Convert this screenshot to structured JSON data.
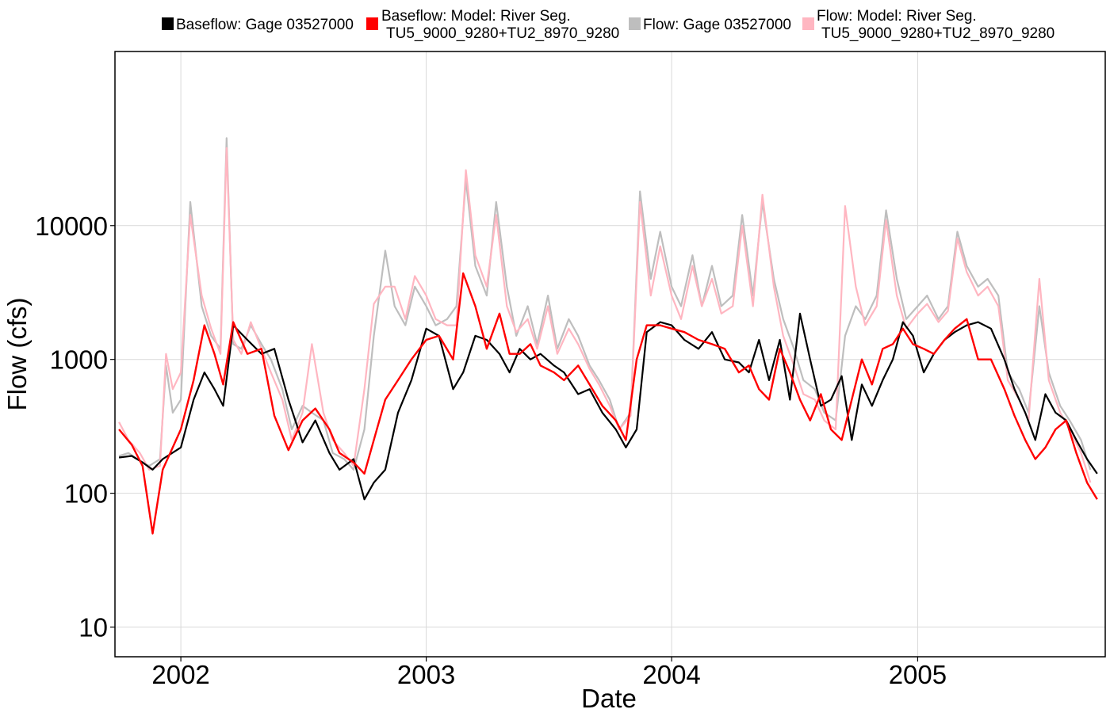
{
  "chart_data": {
    "type": "line",
    "title": "",
    "xlabel": "Date",
    "ylabel": "Flow (cfs)",
    "y_scale": "log10",
    "ylim": [
      6,
      200000
    ],
    "xlim": [
      "2001-09-25",
      "2005-10-07"
    ],
    "grid": true,
    "legend_position": "top",
    "x_ticks": [
      {
        "date": "2002-01-01",
        "label": "2002"
      },
      {
        "date": "2003-01-01",
        "label": "2003"
      },
      {
        "date": "2004-01-01",
        "label": "2004"
      },
      {
        "date": "2005-01-01",
        "label": "2005"
      }
    ],
    "y_ticks": [
      {
        "value": 10,
        "label": "10"
      },
      {
        "value": 100,
        "label": "100"
      },
      {
        "value": 1000,
        "label": "1000"
      },
      {
        "value": 10000,
        "label": "10000"
      }
    ],
    "legend": [
      {
        "color": "#000000",
        "lines": [
          "Baseflow: Gage 03527000"
        ]
      },
      {
        "color": "#ff0000",
        "lines": [
          "Baseflow: Model: River Seg.",
          "TU5_9000_9280+TU2_8970_9280"
        ]
      },
      {
        "color": "#bebebe",
        "lines": [
          "Flow: Gage 03527000"
        ]
      },
      {
        "color": "#ffb6c1",
        "lines": [
          "Flow: Model: River Seg.",
          "TU5_9000_9280+TU2_8970_9280"
        ]
      }
    ],
    "series": [
      {
        "name": "Flow: Gage 03527000",
        "color": "#bebebe",
        "width": 2.2,
        "x": [
          "2001-10-01",
          "2001-10-15",
          "2001-11-01",
          "2001-11-15",
          "2001-12-01",
          "2001-12-10",
          "2001-12-20",
          "2002-01-01",
          "2002-01-15",
          "2002-02-01",
          "2002-02-15",
          "2002-03-01",
          "2002-03-10",
          "2002-03-20",
          "2002-04-01",
          "2002-04-15",
          "2002-05-01",
          "2002-05-15",
          "2002-06-01",
          "2002-06-15",
          "2002-07-01",
          "2002-07-15",
          "2002-08-01",
          "2002-08-15",
          "2002-09-01",
          "2002-09-15",
          "2002-10-01",
          "2002-10-15",
          "2002-11-01",
          "2002-11-15",
          "2002-12-01",
          "2002-12-15",
          "2003-01-01",
          "2003-01-15",
          "2003-02-01",
          "2003-02-15",
          "2003-03-01",
          "2003-03-15",
          "2003-04-01",
          "2003-04-15",
          "2003-05-01",
          "2003-05-15",
          "2003-06-01",
          "2003-06-15",
          "2003-07-01",
          "2003-07-15",
          "2003-08-01",
          "2003-08-15",
          "2003-09-01",
          "2003-09-15",
          "2003-10-01",
          "2003-10-15",
          "2003-11-01",
          "2003-11-15",
          "2003-12-01",
          "2003-12-15",
          "2004-01-01",
          "2004-01-15",
          "2004-02-01",
          "2004-02-15",
          "2004-03-01",
          "2004-03-15",
          "2004-04-01",
          "2004-04-15",
          "2004-05-01",
          "2004-05-15",
          "2004-06-01",
          "2004-06-15",
          "2004-07-01",
          "2004-07-15",
          "2004-08-01",
          "2004-08-15",
          "2004-09-01",
          "2004-09-15",
          "2004-10-01",
          "2004-10-15",
          "2004-11-01",
          "2004-11-15",
          "2004-12-01",
          "2004-12-15",
          "2005-01-01",
          "2005-01-15",
          "2005-02-01",
          "2005-02-15",
          "2005-03-01",
          "2005-03-15",
          "2005-04-01",
          "2005-04-15",
          "2005-05-01",
          "2005-05-15",
          "2005-06-01",
          "2005-06-15",
          "2005-07-01",
          "2005-07-15",
          "2005-08-01",
          "2005-08-15",
          "2005-09-01",
          "2005-09-15"
        ],
        "y": [
          190,
          200,
          175,
          160,
          180,
          900,
          400,
          500,
          15000,
          2500,
          1500,
          1200,
          45000,
          1300,
          1200,
          1800,
          1300,
          1000,
          600,
          300,
          450,
          400,
          350,
          200,
          180,
          150,
          300,
          1500,
          6500,
          2500,
          1800,
          3500,
          2500,
          1800,
          2000,
          2500,
          22000,
          5000,
          3000,
          15000,
          3500,
          1500,
          2500,
          1300,
          3000,
          1200,
          2000,
          1500,
          900,
          700,
          500,
          300,
          400,
          18000,
          4000,
          9000,
          3500,
          2500,
          6000,
          2500,
          5000,
          2500,
          3000,
          12000,
          3000,
          15000,
          4000,
          2000,
          1200,
          700,
          600,
          400,
          350,
          1500,
          2500,
          2000,
          3000,
          13000,
          4000,
          2000,
          2500,
          3000,
          2000,
          2500,
          9000,
          5000,
          3500,
          4000,
          3000,
          800,
          600,
          400,
          2500,
          800,
          450,
          350,
          250,
          150
        ]
      },
      {
        "name": "Flow: Model: River Seg. TU5_9000_9280+TU2_8970_9280",
        "color": "#ffb6c1",
        "width": 2.2,
        "x": [
          "2001-10-01",
          "2001-10-15",
          "2001-11-01",
          "2001-11-15",
          "2001-12-01",
          "2001-12-10",
          "2001-12-20",
          "2002-01-01",
          "2002-01-15",
          "2002-02-01",
          "2002-02-15",
          "2002-03-01",
          "2002-03-10",
          "2002-03-20",
          "2002-04-01",
          "2002-04-15",
          "2002-05-01",
          "2002-05-15",
          "2002-06-01",
          "2002-06-15",
          "2002-07-01",
          "2002-07-15",
          "2002-08-01",
          "2002-08-15",
          "2002-09-01",
          "2002-09-15",
          "2002-10-01",
          "2002-10-15",
          "2002-11-01",
          "2002-11-15",
          "2002-12-01",
          "2002-12-15",
          "2003-01-01",
          "2003-01-15",
          "2003-02-01",
          "2003-02-15",
          "2003-03-01",
          "2003-03-15",
          "2003-04-01",
          "2003-04-15",
          "2003-05-01",
          "2003-05-15",
          "2003-06-01",
          "2003-06-15",
          "2003-07-01",
          "2003-07-15",
          "2003-08-01",
          "2003-08-15",
          "2003-09-01",
          "2003-09-15",
          "2003-10-01",
          "2003-10-15",
          "2003-11-01",
          "2003-11-15",
          "2003-12-01",
          "2003-12-15",
          "2004-01-01",
          "2004-01-15",
          "2004-02-01",
          "2004-02-15",
          "2004-03-01",
          "2004-03-15",
          "2004-04-01",
          "2004-04-15",
          "2004-05-01",
          "2004-05-15",
          "2004-06-01",
          "2004-06-15",
          "2004-07-01",
          "2004-07-15",
          "2004-08-01",
          "2004-08-15",
          "2004-09-01",
          "2004-09-15",
          "2004-10-01",
          "2004-10-15",
          "2004-11-01",
          "2004-11-15",
          "2004-12-01",
          "2004-12-15",
          "2005-01-01",
          "2005-01-15",
          "2005-02-01",
          "2005-02-15",
          "2005-03-01",
          "2005-03-15",
          "2005-04-01",
          "2005-04-15",
          "2005-05-01",
          "2005-05-15",
          "2005-06-01",
          "2005-06-15",
          "2005-07-01",
          "2005-07-15",
          "2005-08-01",
          "2005-08-15",
          "2005-09-01",
          "2005-09-15"
        ],
        "y": [
          340,
          250,
          200,
          150,
          160,
          1100,
          600,
          800,
          12000,
          3000,
          1700,
          1100,
          38000,
          1400,
          1100,
          1900,
          1200,
          800,
          500,
          250,
          400,
          1300,
          400,
          250,
          200,
          160,
          600,
          2600,
          3500,
          3500,
          2000,
          4200,
          3000,
          2000,
          1800,
          1800,
          26000,
          6000,
          3500,
          12000,
          2500,
          1600,
          2000,
          1200,
          2500,
          1100,
          1700,
          1300,
          850,
          650,
          450,
          300,
          380,
          15000,
          3000,
          7000,
          3000,
          2000,
          5000,
          2500,
          4000,
          2200,
          2500,
          10000,
          2500,
          17000,
          3500,
          1500,
          900,
          550,
          500,
          350,
          300,
          14000,
          3500,
          1800,
          2500,
          11000,
          3000,
          1700,
          2200,
          2600,
          1900,
          2300,
          8000,
          4500,
          3000,
          3500,
          2500,
          700,
          500,
          350,
          4000,
          700,
          400,
          300,
          200,
          120
        ]
      },
      {
        "name": "Baseflow: Gage 03527000",
        "color": "#000000",
        "width": 2.2,
        "x": [
          "2001-10-01",
          "2001-10-20",
          "2001-11-05",
          "2001-11-20",
          "2001-12-05",
          "2002-01-01",
          "2002-01-20",
          "2002-02-05",
          "2002-02-20",
          "2002-03-05",
          "2002-03-20",
          "2002-04-10",
          "2002-05-01",
          "2002-05-20",
          "2002-06-10",
          "2002-07-01",
          "2002-07-20",
          "2002-08-10",
          "2002-08-25",
          "2002-09-15",
          "2002-10-01",
          "2002-10-15",
          "2002-11-01",
          "2002-11-20",
          "2002-12-10",
          "2003-01-01",
          "2003-01-20",
          "2003-02-10",
          "2003-02-25",
          "2003-03-15",
          "2003-04-01",
          "2003-04-20",
          "2003-05-05",
          "2003-05-20",
          "2003-06-05",
          "2003-06-20",
          "2003-07-10",
          "2003-07-25",
          "2003-08-15",
          "2003-09-01",
          "2003-09-20",
          "2003-10-10",
          "2003-10-25",
          "2003-11-10",
          "2003-11-25",
          "2003-12-15",
          "2004-01-01",
          "2004-01-20",
          "2004-02-10",
          "2004-03-01",
          "2004-03-20",
          "2004-04-10",
          "2004-04-25",
          "2004-05-10",
          "2004-05-25",
          "2004-06-10",
          "2004-06-25",
          "2004-07-10",
          "2004-07-25",
          "2004-08-10",
          "2004-08-25",
          "2004-09-10",
          "2004-09-25",
          "2004-10-10",
          "2004-10-25",
          "2004-11-10",
          "2004-11-25",
          "2004-12-10",
          "2004-12-25",
          "2005-01-10",
          "2005-01-25",
          "2005-02-10",
          "2005-02-25",
          "2005-03-15",
          "2005-04-01",
          "2005-04-20",
          "2005-05-10",
          "2005-05-25",
          "2005-06-10",
          "2005-06-25",
          "2005-07-10",
          "2005-07-25",
          "2005-08-10",
          "2005-08-25",
          "2005-09-10",
          "2005-09-25"
        ],
        "y": [
          185,
          190,
          170,
          150,
          180,
          220,
          500,
          800,
          600,
          450,
          1800,
          1400,
          1100,
          1200,
          500,
          240,
          350,
          200,
          150,
          180,
          90,
          120,
          150,
          400,
          700,
          1700,
          1500,
          600,
          800,
          1500,
          1400,
          1100,
          800,
          1200,
          1000,
          1100,
          900,
          800,
          550,
          600,
          400,
          300,
          220,
          300,
          1600,
          1900,
          1800,
          1400,
          1200,
          1600,
          1000,
          950,
          800,
          1400,
          700,
          1400,
          500,
          2200,
          1000,
          450,
          500,
          750,
          250,
          650,
          450,
          700,
          1000,
          1900,
          1500,
          800,
          1100,
          1400,
          1600,
          1800,
          1900,
          1700,
          1000,
          600,
          400,
          250,
          550,
          400,
          350,
          250,
          180,
          140
        ]
      },
      {
        "name": "Baseflow: Model: River Seg. TU5_9000_9280+TU2_8970_9280",
        "color": "#ff0000",
        "width": 2.4,
        "x": [
          "2001-10-01",
          "2001-10-20",
          "2001-11-05",
          "2001-11-20",
          "2001-12-05",
          "2002-01-01",
          "2002-01-20",
          "2002-02-05",
          "2002-02-20",
          "2002-03-05",
          "2002-03-20",
          "2002-04-10",
          "2002-05-01",
          "2002-05-20",
          "2002-06-10",
          "2002-07-01",
          "2002-07-20",
          "2002-08-10",
          "2002-08-25",
          "2002-09-15",
          "2002-10-01",
          "2002-10-15",
          "2002-11-01",
          "2002-11-20",
          "2002-12-10",
          "2003-01-01",
          "2003-01-20",
          "2003-02-10",
          "2003-02-25",
          "2003-03-15",
          "2003-04-01",
          "2003-04-20",
          "2003-05-05",
          "2003-05-20",
          "2003-06-05",
          "2003-06-20",
          "2003-07-10",
          "2003-07-25",
          "2003-08-15",
          "2003-09-01",
          "2003-09-20",
          "2003-10-10",
          "2003-10-25",
          "2003-11-10",
          "2003-11-25",
          "2003-12-15",
          "2004-01-01",
          "2004-01-20",
          "2004-02-10",
          "2004-03-01",
          "2004-03-20",
          "2004-04-10",
          "2004-04-25",
          "2004-05-10",
          "2004-05-25",
          "2004-06-10",
          "2004-06-25",
          "2004-07-10",
          "2004-07-25",
          "2004-08-10",
          "2004-08-25",
          "2004-09-10",
          "2004-09-25",
          "2004-10-10",
          "2004-10-25",
          "2004-11-10",
          "2004-11-25",
          "2004-12-10",
          "2004-12-25",
          "2005-01-10",
          "2005-01-25",
          "2005-02-10",
          "2005-02-25",
          "2005-03-15",
          "2005-04-01",
          "2005-04-20",
          "2005-05-10",
          "2005-05-25",
          "2005-06-10",
          "2005-06-25",
          "2005-07-10",
          "2005-07-25",
          "2005-08-10",
          "2005-08-25",
          "2005-09-10",
          "2005-09-25"
        ],
        "y": [
          300,
          230,
          160,
          50,
          150,
          300,
          700,
          1800,
          1100,
          650,
          1900,
          1100,
          1200,
          380,
          210,
          350,
          430,
          300,
          200,
          170,
          140,
          250,
          500,
          700,
          1000,
          1400,
          1500,
          1000,
          4400,
          2500,
          1200,
          2200,
          1100,
          1100,
          1300,
          900,
          800,
          700,
          900,
          650,
          450,
          350,
          250,
          1000,
          1800,
          1800,
          1700,
          1600,
          1400,
          1300,
          1200,
          800,
          900,
          600,
          500,
          1200,
          800,
          500,
          350,
          550,
          300,
          250,
          500,
          1000,
          650,
          1200,
          1300,
          1700,
          1300,
          1200,
          1100,
          1400,
          1700,
          2000,
          1000,
          1000,
          600,
          380,
          250,
          180,
          220,
          300,
          350,
          200,
          120,
          90
        ]
      }
    ]
  }
}
